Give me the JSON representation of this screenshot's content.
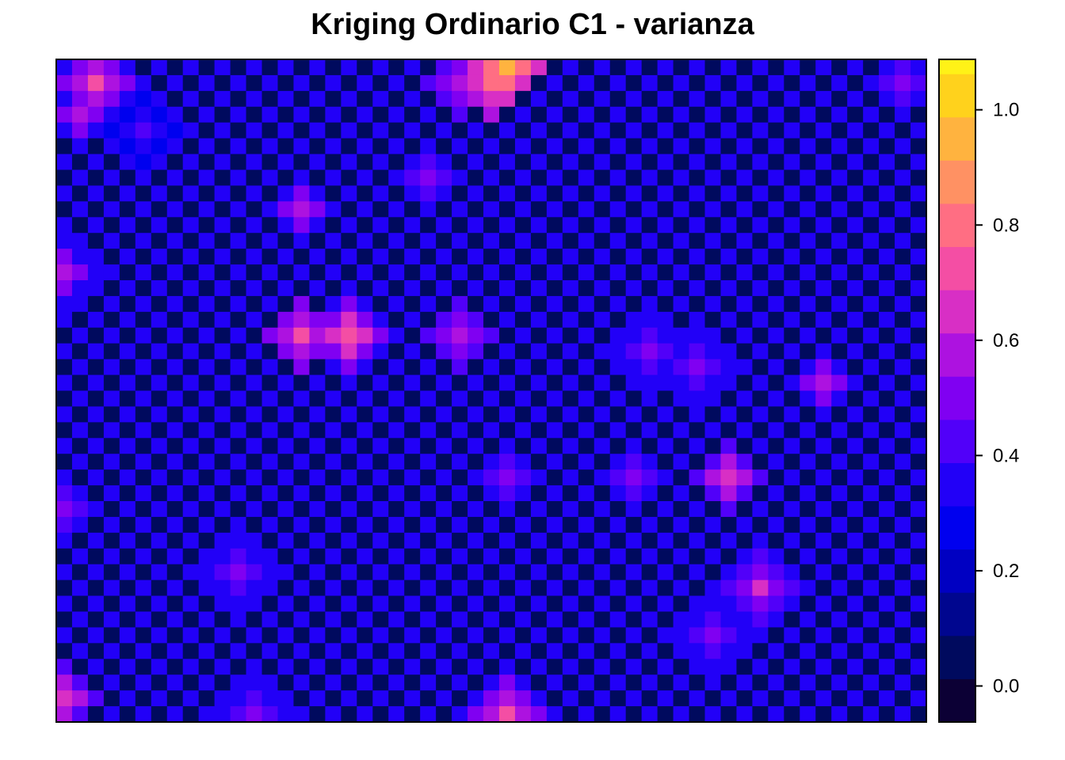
{
  "chart_data": {
    "type": "heatmap",
    "title": "Kriging Ordinario C1 - varianza",
    "xlabel": "",
    "ylabel": "",
    "grid": {
      "nrow": 42,
      "ncol": 55,
      "base_pattern": "checkerboard",
      "base_values": [
        0.34,
        0.02
      ],
      "background_value": 0.3
    },
    "hotspots": [
      {
        "cx": 2,
        "cy": 1,
        "value": 0.72
      },
      {
        "cx": 1,
        "cy": 3,
        "value": 0.55
      },
      {
        "cx": 5,
        "cy": 4,
        "value": 0.45
      },
      {
        "cx": 23,
        "cy": 7,
        "value": 0.52
      },
      {
        "cx": 15,
        "cy": 9,
        "value": 0.55
      },
      {
        "cx": 28,
        "cy": 0,
        "value": 0.95
      },
      {
        "cx": 27,
        "cy": 1,
        "value": 0.8
      },
      {
        "cx": 25,
        "cy": 1,
        "value": 0.6
      },
      {
        "cx": 18,
        "cy": 17,
        "value": 0.76
      },
      {
        "cx": 15,
        "cy": 17,
        "value": 0.7
      },
      {
        "cx": 25,
        "cy": 17,
        "value": 0.6
      },
      {
        "cx": 42,
        "cy": 26,
        "value": 0.65
      },
      {
        "cx": 48,
        "cy": 20,
        "value": 0.55
      },
      {
        "cx": 44,
        "cy": 33,
        "value": 0.62
      },
      {
        "cx": 28,
        "cy": 41,
        "value": 0.7
      },
      {
        "cx": 0,
        "cy": 40,
        "value": 0.65
      },
      {
        "cx": 0,
        "cy": 13,
        "value": 0.55
      },
      {
        "cx": 0,
        "cy": 28,
        "value": 0.52
      },
      {
        "cx": 53,
        "cy": 1,
        "value": 0.52
      },
      {
        "cx": 37,
        "cy": 18,
        "value": 0.52
      },
      {
        "cx": 40,
        "cy": 19,
        "value": 0.52
      },
      {
        "cx": 28,
        "cy": 26,
        "value": 0.52
      },
      {
        "cx": 36,
        "cy": 26,
        "value": 0.52
      },
      {
        "cx": 11,
        "cy": 32,
        "value": 0.52
      },
      {
        "cx": 41,
        "cy": 36,
        "value": 0.52
      },
      {
        "cx": 12,
        "cy": 41,
        "value": 0.52
      }
    ],
    "colorbar": {
      "ylim": [
        -0.0625,
        1.0875
      ],
      "breaks": [
        -0.0625,
        0.0125,
        0.0875,
        0.1625,
        0.2375,
        0.3125,
        0.3875,
        0.4625,
        0.5375,
        0.6125,
        0.6875,
        0.7625,
        0.8375,
        0.9125,
        0.9875,
        1.0625,
        1.0875
      ],
      "colors": [
        "#0C0035",
        "#000A5E",
        "#00068F",
        "#0000C2",
        "#0000EF",
        "#2200F7",
        "#5100F9",
        "#8000F2",
        "#AD12E0",
        "#D82FC5",
        "#F44EA4",
        "#FF6E83",
        "#FF9163",
        "#FFB33F",
        "#FFD21C",
        "#FFF217",
        "#FFFF59"
      ],
      "tick_values": [
        0.0,
        0.2,
        0.4,
        0.6,
        0.8,
        1.0
      ],
      "tick_labels": [
        "0.0",
        "0.2",
        "0.4",
        "0.6",
        "0.8",
        "1.0"
      ]
    }
  }
}
